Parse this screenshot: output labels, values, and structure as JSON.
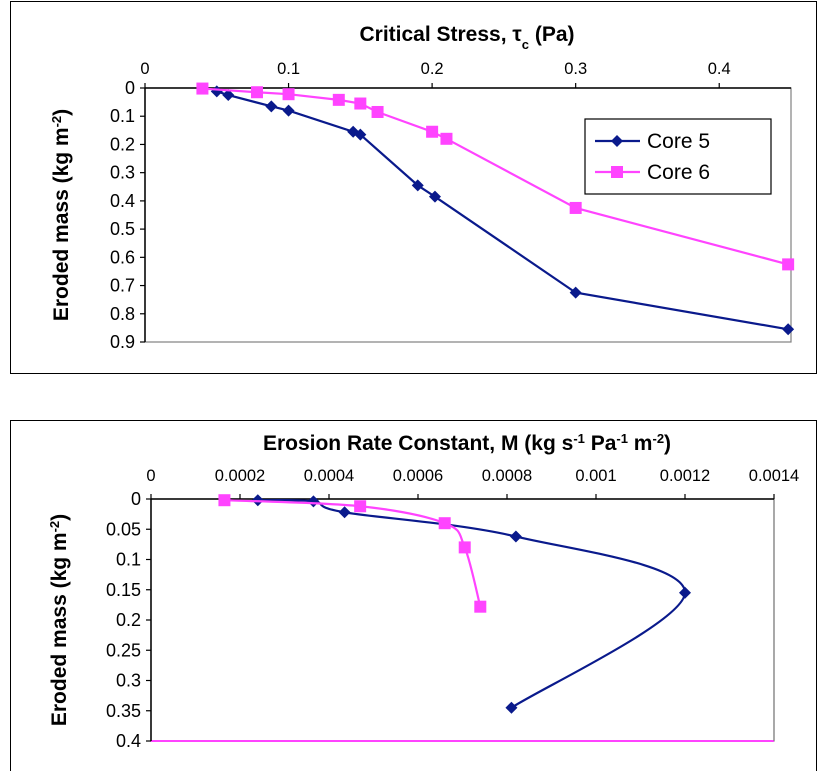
{
  "chart_data": [
    {
      "type": "line",
      "title_main": "Critical Stress, τ",
      "title_sub": "c",
      "title_tail": " (Pa)",
      "ylabel_main": "Eroded mass (kg m",
      "ylabel_sup": "-2",
      "ylabel_tail": ")",
      "xlim": [
        0,
        0.45
      ],
      "ylim": [
        0,
        0.9
      ],
      "y_reversed": true,
      "x_axis_position": "top",
      "x_ticks": [
        0,
        0.1,
        0.2,
        0.3,
        0.4
      ],
      "x_tick_labels": [
        "0",
        "0.1",
        "0.2",
        "0.3",
        "0.4"
      ],
      "y_ticks": [
        0,
        0.1,
        0.2,
        0.3,
        0.4,
        0.5,
        0.6,
        0.7,
        0.8,
        0.9
      ],
      "y_tick_labels": [
        "0",
        "0.1",
        "0.2",
        "0.3",
        "0.4",
        "0.5",
        "0.6",
        "0.7",
        "0.8",
        "0.9"
      ],
      "legend_position": "top-right",
      "grid": false,
      "series": [
        {
          "name": "Core 5",
          "color": "#0a1a8c",
          "marker": "diamond",
          "x": [
            0.05,
            0.058,
            0.088,
            0.1,
            0.145,
            0.15,
            0.19,
            0.202,
            0.3,
            0.448
          ],
          "y": [
            0.012,
            0.025,
            0.065,
            0.08,
            0.155,
            0.165,
            0.345,
            0.385,
            0.725,
            0.855
          ]
        },
        {
          "name": "Core 6",
          "color": "#ff44ff",
          "marker": "square",
          "x": [
            0.04,
            0.078,
            0.1,
            0.135,
            0.15,
            0.162,
            0.2,
            0.21,
            0.3,
            0.448
          ],
          "y": [
            0.002,
            0.015,
            0.022,
            0.042,
            0.055,
            0.085,
            0.155,
            0.18,
            0.425,
            0.625
          ]
        }
      ]
    },
    {
      "type": "line",
      "title_main": "Erosion Rate Constant, M (kg s",
      "title_sup1": "-1",
      "title_mid1": " Pa",
      "title_sup2": "-1",
      "title_mid2": " m",
      "title_sup3": "-2",
      "title_tail": ")",
      "ylabel_main": "Eroded mass (kg m",
      "ylabel_sup": "-2",
      "ylabel_tail": ")",
      "xlim": [
        0,
        0.0014
      ],
      "ylim": [
        0,
        0.4
      ],
      "y_reversed": true,
      "x_axis_position": "top",
      "x_ticks": [
        0,
        0.0002,
        0.0004,
        0.0006,
        0.0008,
        0.001,
        0.0012,
        0.0014
      ],
      "x_tick_labels": [
        "0",
        "0.0002",
        "0.0004",
        "0.0006",
        "0.0008",
        "0.001",
        "0.0012",
        "0.0014"
      ],
      "y_ticks": [
        0,
        0.05,
        0.1,
        0.15,
        0.2,
        0.25,
        0.3,
        0.35,
        0.4
      ],
      "y_tick_labels": [
        "0",
        "0.05",
        "0.1",
        "0.15",
        "0.2",
        "0.25",
        "0.3",
        "0.35",
        "0.4"
      ],
      "grid": false,
      "series": [
        {
          "color": "#0a1a8c",
          "marker": "diamond",
          "smooth": true,
          "x": [
            0.00024,
            0.000365,
            0.000435,
            0.00082,
            0.0012,
            0.00081
          ],
          "y": [
            0.002,
            0.004,
            0.022,
            0.062,
            0.155,
            0.345
          ]
        },
        {
          "color": "#ff44ff",
          "marker": "square",
          "smooth": true,
          "x": [
            0.000165,
            0.00047,
            0.00066,
            0.000705,
            0.00074
          ],
          "y": [
            0.002,
            0.012,
            0.04,
            0.08,
            0.178
          ]
        }
      ]
    }
  ]
}
